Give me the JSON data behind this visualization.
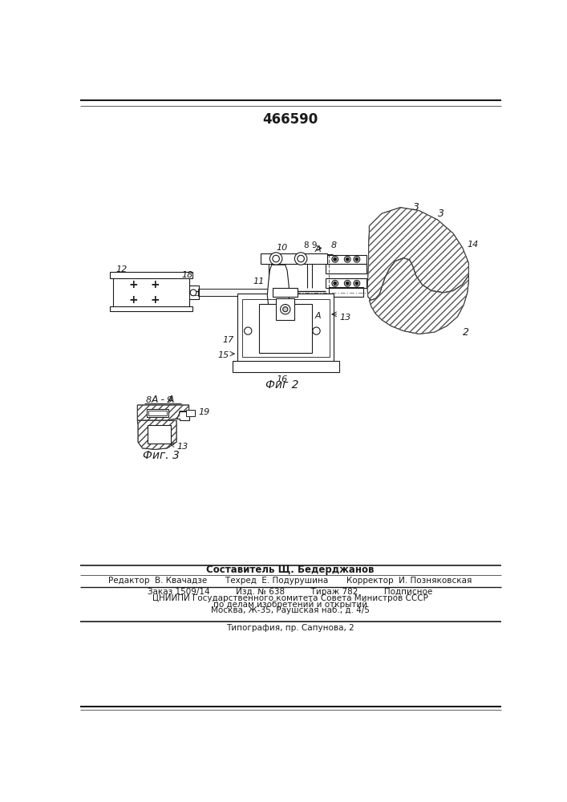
{
  "patent_number": "466590",
  "fig2_label": "Фиг 2",
  "fig3_label": "Фиг. 3",
  "section_label": "А - А",
  "background_color": "#ffffff",
  "line_color": "#1a1a1a",
  "footer_lines": [
    "Составитель Щ. Бедерджанов",
    "Редактор  В. Квачадзе       Техред  Е. Подурушина       Корректор  И. Позняковская",
    "Заказ 1509/14          Изд. № 638          Тираж 782          Подписное",
    "ЦНИИПИ Государственного комитета Совета Министров СССР",
    "по делам изобретений и открытий",
    "Москва, Ж-35, Раушская наб., д. 4/5",
    "Типография, пр. Сапунова, 2"
  ]
}
